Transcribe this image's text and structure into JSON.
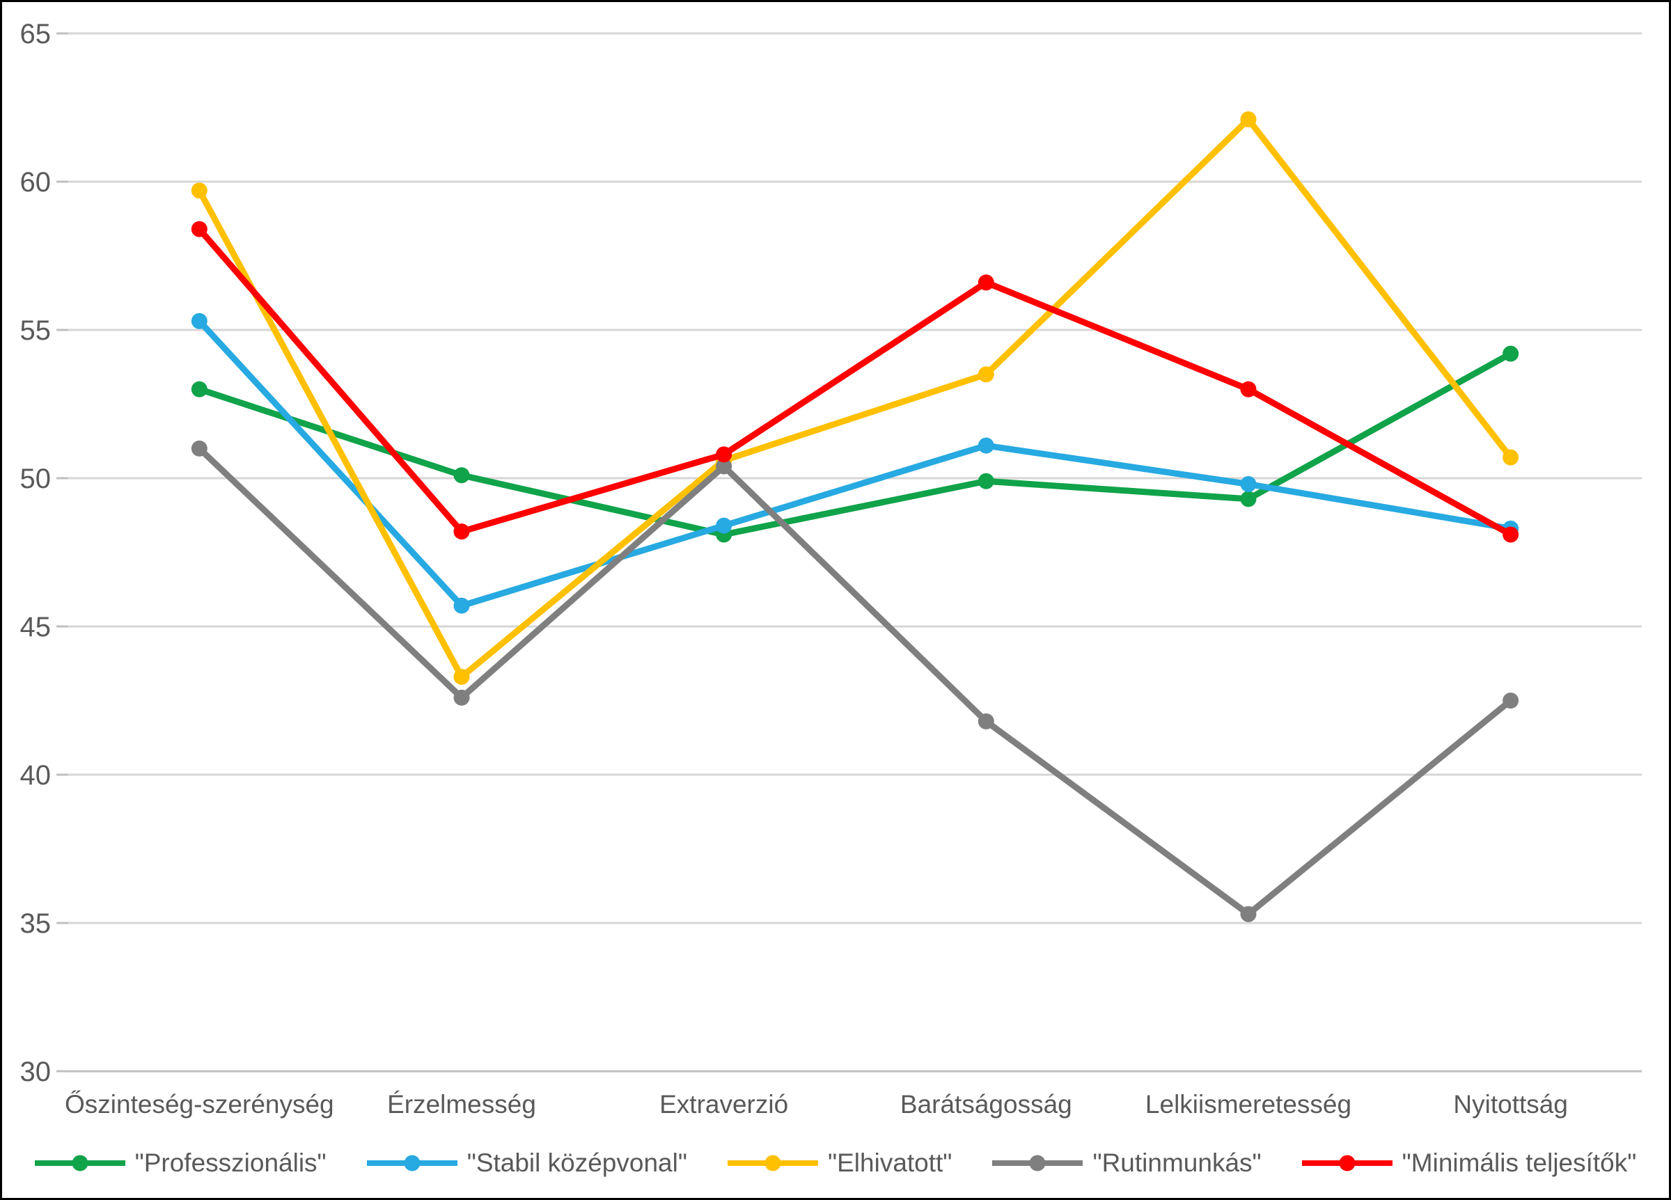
{
  "chart_data": {
    "type": "line",
    "title": "",
    "xlabel": "",
    "ylabel": "",
    "categories": [
      "Őszinteség-szerénység",
      "Érzelmesség",
      "Extraverzió",
      "Barátságosság",
      "Lelkiismeretesség",
      "Nyitottság"
    ],
    "series": [
      {
        "id": "professzionalis",
        "name": "\"Professzionális\"",
        "color": "#10A34A",
        "values": [
          53.0,
          50.1,
          48.1,
          49.9,
          49.3,
          54.2
        ]
      },
      {
        "id": "stabil-kozepvonal",
        "name": "\"Stabil középvonal\"",
        "color": "#27A9E1",
        "values": [
          55.3,
          45.7,
          48.4,
          51.1,
          49.8,
          48.3
        ]
      },
      {
        "id": "elhivatott",
        "name": "\"Elhivatott\"",
        "color": "#FFC000",
        "values": [
          59.7,
          43.3,
          50.6,
          53.5,
          62.1,
          50.7
        ]
      },
      {
        "id": "rutinmunkas",
        "name": "\"Rutinmunkás\"",
        "color": "#7F7F7F",
        "values": [
          51.0,
          42.6,
          50.4,
          41.8,
          35.3,
          42.5
        ]
      },
      {
        "id": "minimalis-teljesitok",
        "name": "\"Minimális teljesítők\"",
        "color": "#FF0000",
        "values": [
          58.4,
          48.2,
          50.8,
          56.6,
          53.0,
          48.1
        ]
      }
    ],
    "ylim": [
      30,
      65
    ],
    "yticks": [
      30,
      35,
      40,
      45,
      50,
      55,
      60,
      65
    ],
    "grid": true,
    "legend_position": "bottom",
    "legend_marker": "line-with-dot-icon"
  },
  "style": {
    "background": "#FFFFFF",
    "border_color": "#000000",
    "grid_color": "#D6D6D6",
    "axis_line_color": "#BFBFBF",
    "tick_color": "#BFBFBF",
    "axis_text_color": "#595959"
  }
}
